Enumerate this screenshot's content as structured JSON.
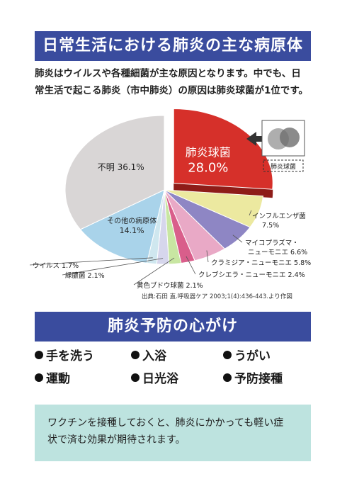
{
  "title": "日常生活における肺炎の主な病原体",
  "intro_lines": [
    "肺炎はウイルスや各種細菌が主な原因となります。中でも、日",
    "常生活で起こる肺炎（市中肺炎）の原因は肺炎球菌が1位です。"
  ],
  "chart_data": {
    "type": "pie",
    "unit": "%",
    "slices": [
      {
        "label": "肺炎球菌",
        "value": 28.0,
        "value_text": "28.0%",
        "color": "#d6302a"
      },
      {
        "label": "インフルエンザ菌",
        "value": 7.5,
        "value_text": "7.5%",
        "color": "#ece9a0"
      },
      {
        "label": "マイコプラズマ・ニューモニエ",
        "value": 6.6,
        "value_text": "6.6%",
        "color": "#8e86c4"
      },
      {
        "label": "クラミジア・ニューモニエ",
        "value": 5.8,
        "value_text": "5.8%",
        "color": "#e9a9c6"
      },
      {
        "label": "クレブシエラ・ニューモニエ",
        "value": 2.4,
        "value_text": "2.4%",
        "color": "#d95e8b"
      },
      {
        "label": "黄色ブドウ球菌",
        "value": 2.1,
        "value_text": "2.1%",
        "color": "#c8e6a2"
      },
      {
        "label": "緑膿菌",
        "value": 2.1,
        "value_text": "2.1%",
        "color": "#d6d6ec"
      },
      {
        "label": "ウイルス",
        "value": 1.7,
        "value_text": "1.7%",
        "color": "#cfe7ef"
      },
      {
        "label": "その他の病原体",
        "value": 14.1,
        "value_text": "14.1%",
        "color": "#a9d3ea"
      },
      {
        "label": "不明",
        "value": 36.1,
        "value_text": "36.1%",
        "color": "#d9d6d6"
      }
    ],
    "inset_label": "肺炎球菌"
  },
  "source": "出典:石田 直.呼吸器ケア 2003;1(4):436-443.より作図",
  "prevention_title": "肺炎予防の心がけ",
  "tips": [
    "手を洗う",
    "入浴",
    "うがい",
    "運動",
    "日光浴",
    "予防接種"
  ],
  "note_lines": [
    "ワクチンを接種しておくと、肺炎にかかっても軽い症",
    "状で済む効果が期待されます。"
  ]
}
